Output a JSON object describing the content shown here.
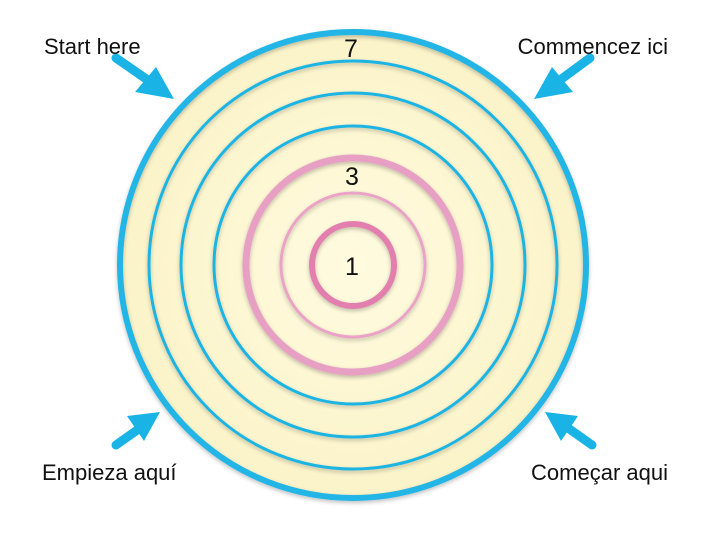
{
  "corner_labels": {
    "top_left": "Start here",
    "top_right": "Commencez ici",
    "bottom_left": "Empieza aquí",
    "bottom_right": "Começar aqui"
  },
  "ring_labels": {
    "outer": "7",
    "middle": "3",
    "center": "1"
  },
  "colors": {
    "fill": "#fdf7d2",
    "outer_ring": "#22b5e6",
    "blue_ring": "#1fb4e3",
    "pink_ring": "#e37fae",
    "pink_ring_light": "#eaa3c6",
    "arrow": "#19b3e6"
  }
}
